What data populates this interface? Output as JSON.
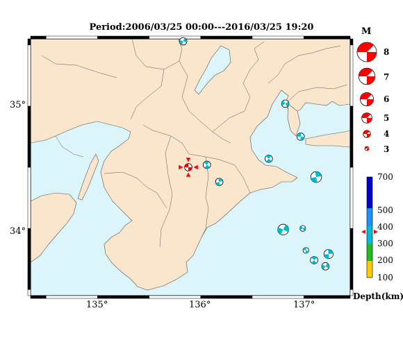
{
  "title": "Period:2006/03/25 00:00---2016/03/25 19:20",
  "axes": {
    "lat_labels": [
      "35°",
      "34°"
    ],
    "lon_labels": [
      "135°",
      "136°",
      "137°"
    ]
  },
  "legend": {
    "magnitude_header": "M",
    "magnitudes": [
      "8",
      "7",
      "6",
      "5",
      "4",
      "3"
    ],
    "depth_title": "Depth(km)",
    "depth_ticks": [
      "700",
      "500",
      "400",
      "300",
      "200",
      "100"
    ],
    "depth_colors": [
      "#0000cc",
      "#1e90ff",
      "#00bcd4",
      "#22bb22",
      "#ffcc00"
    ]
  },
  "colors": {
    "land": "#fae6cd",
    "sea": "#dcf5fa",
    "mainshock": "#ff0000",
    "events": "#00bcc8"
  },
  "events": [
    {
      "lon": 135.88,
      "lat": 34.5,
      "mag": 4,
      "main": true
    },
    {
      "lon": 136.06,
      "lat": 34.52,
      "mag": 4
    },
    {
      "lon": 136.18,
      "lat": 34.38,
      "mag": 4
    },
    {
      "lon": 135.83,
      "lat": 35.53,
      "mag": 4
    },
    {
      "lon": 136.82,
      "lat": 35.02,
      "mag": 4
    },
    {
      "lon": 136.97,
      "lat": 34.75,
      "mag": 4
    },
    {
      "lon": 136.66,
      "lat": 34.57,
      "mag": 4
    },
    {
      "lon": 137.12,
      "lat": 34.42,
      "mag": 5
    },
    {
      "lon": 136.8,
      "lat": 33.99,
      "mag": 5
    },
    {
      "lon": 136.99,
      "lat": 34.0,
      "mag": 3.5
    },
    {
      "lon": 137.02,
      "lat": 33.82,
      "mag": 3.5
    },
    {
      "lon": 137.1,
      "lat": 33.74,
      "mag": 4
    },
    {
      "lon": 137.24,
      "lat": 33.79,
      "mag": 4.5
    },
    {
      "lon": 137.21,
      "lat": 33.69,
      "mag": 4
    }
  ]
}
